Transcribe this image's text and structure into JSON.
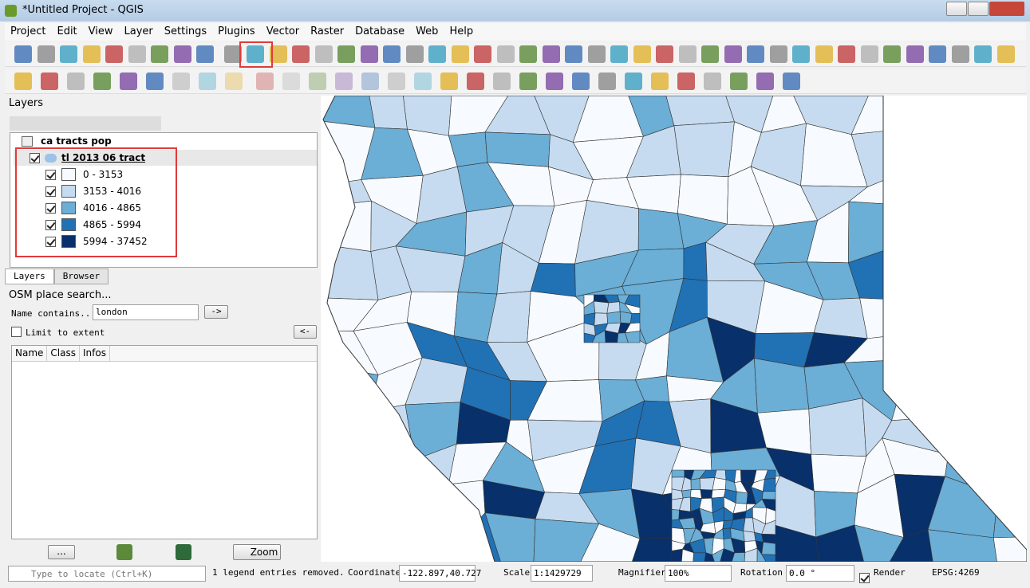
{
  "window": {
    "title": "*Untitled Project - QGIS"
  },
  "menu": [
    "Project",
    "Edit",
    "View",
    "Layer",
    "Settings",
    "Plugins",
    "Vector",
    "Raster",
    "Database",
    "Web",
    "Help"
  ],
  "layers_panel": {
    "title": "Layers",
    "layers": [
      {
        "name": "ca tracts pop"
      },
      {
        "name": "tl 2013 06 tract",
        "legend": [
          {
            "label": "0 - 3153",
            "color": "#f7fbff"
          },
          {
            "label": "3153 - 4016",
            "color": "#c6dbef"
          },
          {
            "label": "4016 - 4865",
            "color": "#6baed6"
          },
          {
            "label": "4865 - 5994",
            "color": "#2171b5"
          },
          {
            "label": "5994 - 37452",
            "color": "#08306b"
          }
        ]
      }
    ],
    "tabs": [
      "Layers",
      "Browser"
    ]
  },
  "osm_panel": {
    "title": "OSM place search...",
    "name_label": "Name contains...",
    "query": "london",
    "go": "->",
    "limit_label": "Limit to extent",
    "back": "<-",
    "columns": [
      "Name",
      "Class",
      "Infos"
    ],
    "buttons": [
      "...",
      "Zoom"
    ]
  },
  "status_bar": {
    "locator": "Type to locate (Ctrl+K)",
    "message": "1 legend entries removed.",
    "coordinate_label": "Coordinate",
    "coordinate": "-122.897,40.727",
    "scale_label": "Scale",
    "scale": "1:1429729",
    "magnifier_label": "Magnifier",
    "magnifier": "100%",
    "rotation_label": "Rotation",
    "rotation": "0.0 °",
    "render_label": "Render",
    "crs": "EPSG:4269"
  }
}
